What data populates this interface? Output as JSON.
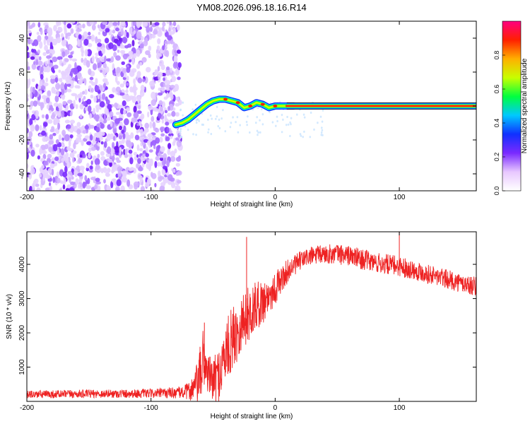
{
  "title": "YM08.2026.096.18.16.R14",
  "chart_data": [
    {
      "type": "heatmap",
      "xlabel": "Height of straight line (km)",
      "ylabel": "Frequency (Hz)",
      "xlim": [
        -200,
        162
      ],
      "ylim": [
        -50,
        50
      ],
      "x_ticks": [
        -200,
        -100,
        0,
        100
      ],
      "y_ticks": [
        -40,
        -20,
        0,
        20,
        40
      ],
      "noise_region_x": [
        -200,
        -78
      ],
      "transition": {
        "x": [
          -80,
          -75,
          -70,
          -65,
          -60,
          -55,
          -50,
          -45,
          -40,
          -35,
          -30,
          -25,
          -20,
          -15,
          -10,
          -5,
          0,
          5,
          10,
          15
        ],
        "freq": [
          -11,
          -10,
          -8,
          -5,
          -2,
          1,
          3,
          4,
          4,
          3,
          2,
          -1,
          0,
          2,
          1,
          -1,
          0,
          0,
          0,
          0
        ]
      },
      "carrier": {
        "x": [
          15,
          162
        ],
        "freq": 0,
        "amplitude": 0.95
      },
      "colorbar": {
        "label": "Normalized spectral amplitude",
        "range": [
          0,
          1
        ],
        "ticks": [
          "0.0",
          "0.2",
          "0.4",
          "0.6",
          "0.8"
        ],
        "tick_values": [
          0.0,
          0.2,
          0.4,
          0.6,
          0.8
        ],
        "colors": [
          "#ffffff",
          "#e8c8ff",
          "#7a2aff",
          "#1030ff",
          "#00c8ff",
          "#00ff40",
          "#c8ff00",
          "#ffb000",
          "#ff2000",
          "#ff0080"
        ]
      }
    },
    {
      "type": "line",
      "xlabel": "Height of straight line (km)",
      "ylabel": "SNR (10 * v/v)",
      "xlim": [
        -200,
        162
      ],
      "ylim": [
        0,
        4950
      ],
      "x_ticks": [
        -200,
        -100,
        0,
        100
      ],
      "y_ticks": [
        1000,
        2000,
        3000,
        4000
      ],
      "color": "#ee2222",
      "series": [
        {
          "name": "SNR",
          "x": [
            -200,
            -150,
            -100,
            -75,
            -70,
            -65,
            -62,
            -60,
            -58,
            -55,
            -52,
            -50,
            -45,
            -40,
            -35,
            -30,
            -25,
            -20,
            -15,
            -10,
            -5,
            0,
            5,
            10,
            15,
            20,
            25,
            30,
            40,
            50,
            60,
            70,
            80,
            90,
            100,
            110,
            120,
            130,
            140,
            150,
            162
          ],
          "y": [
            200,
            220,
            230,
            260,
            300,
            400,
            600,
            800,
            1300,
            900,
            700,
            600,
            800,
            1400,
            1800,
            2100,
            2400,
            2600,
            2800,
            2900,
            3100,
            3300,
            3550,
            3800,
            3950,
            4100,
            4200,
            4250,
            4300,
            4300,
            4250,
            4150,
            4050,
            4000,
            3950,
            3850,
            3750,
            3650,
            3550,
            3450,
            3350
          ],
          "noise_amplitude": [
            120,
            120,
            130,
            180,
            250,
            450,
            700,
            900,
            900,
            600,
            600,
            650,
            800,
            900,
            950,
            900,
            850,
            800,
            700,
            650,
            550,
            500,
            400,
            350,
            300,
            280,
            280,
            280,
            280,
            300,
            300,
            300,
            300,
            300,
            300,
            280,
            280,
            280,
            280,
            280,
            280
          ]
        }
      ],
      "spikes": [
        {
          "x": -57,
          "y": 2300
        },
        {
          "x": -23,
          "y": 4800
        },
        {
          "x": 100,
          "y": 4950
        }
      ]
    }
  ]
}
